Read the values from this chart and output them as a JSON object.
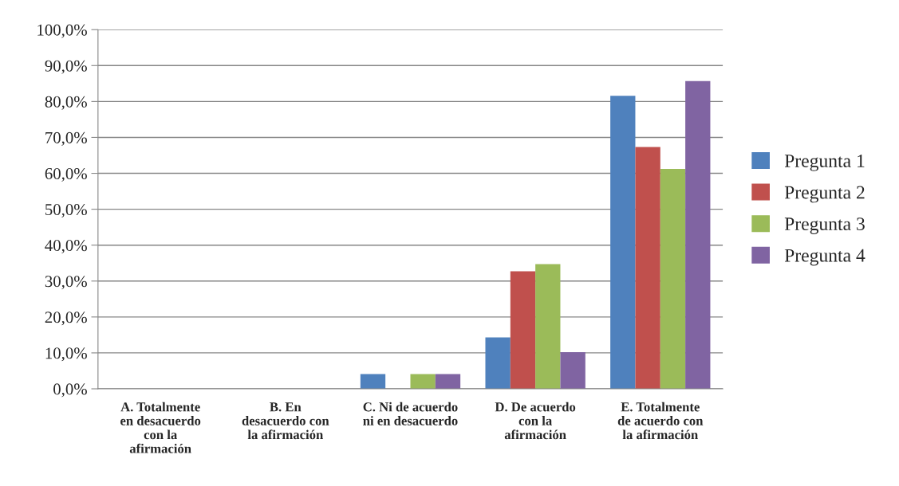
{
  "chart_data": {
    "type": "bar",
    "categories": [
      "A. Totalmente\nen desacuerdo\ncon la\nafirmación",
      "B. En\ndesacuerdo con\nla afirmación",
      "C. Ni de acuerdo\nni en desacuerdo",
      "D. De acuerdo\ncon la\nafirmación",
      "E. Totalmente\nde acuerdo con\nla afirmación"
    ],
    "series": [
      {
        "name": "Pregunta 1",
        "color": "#4f81bd",
        "values": [
          0,
          0,
          4.1,
          14.3,
          81.6
        ]
      },
      {
        "name": "Pregunta 2",
        "color": "#c0504d",
        "values": [
          0,
          0,
          0,
          32.7,
          67.3
        ]
      },
      {
        "name": "Pregunta 3",
        "color": "#9bbb59",
        "values": [
          0,
          0,
          4.1,
          34.7,
          61.2
        ]
      },
      {
        "name": "Pregunta 4",
        "color": "#8064a2",
        "values": [
          0,
          0,
          4.1,
          10.2,
          85.7
        ]
      }
    ],
    "ylim": [
      0,
      100
    ],
    "yticks": [
      {
        "value": 0,
        "label": "0,0%"
      },
      {
        "value": 10,
        "label": "10,0%"
      },
      {
        "value": 20,
        "label": "20,0%"
      },
      {
        "value": 30,
        "label": "30,0%"
      },
      {
        "value": 40,
        "label": "40,0%"
      },
      {
        "value": 50,
        "label": "50,0%"
      },
      {
        "value": 60,
        "label": "60,0%"
      },
      {
        "value": 70,
        "label": "70,0%"
      },
      {
        "value": 80,
        "label": "80,0%"
      },
      {
        "value": 90,
        "label": "90,0%"
      },
      {
        "value": 100,
        "label": "100,0%"
      }
    ],
    "grid": "y",
    "legend": "right"
  }
}
